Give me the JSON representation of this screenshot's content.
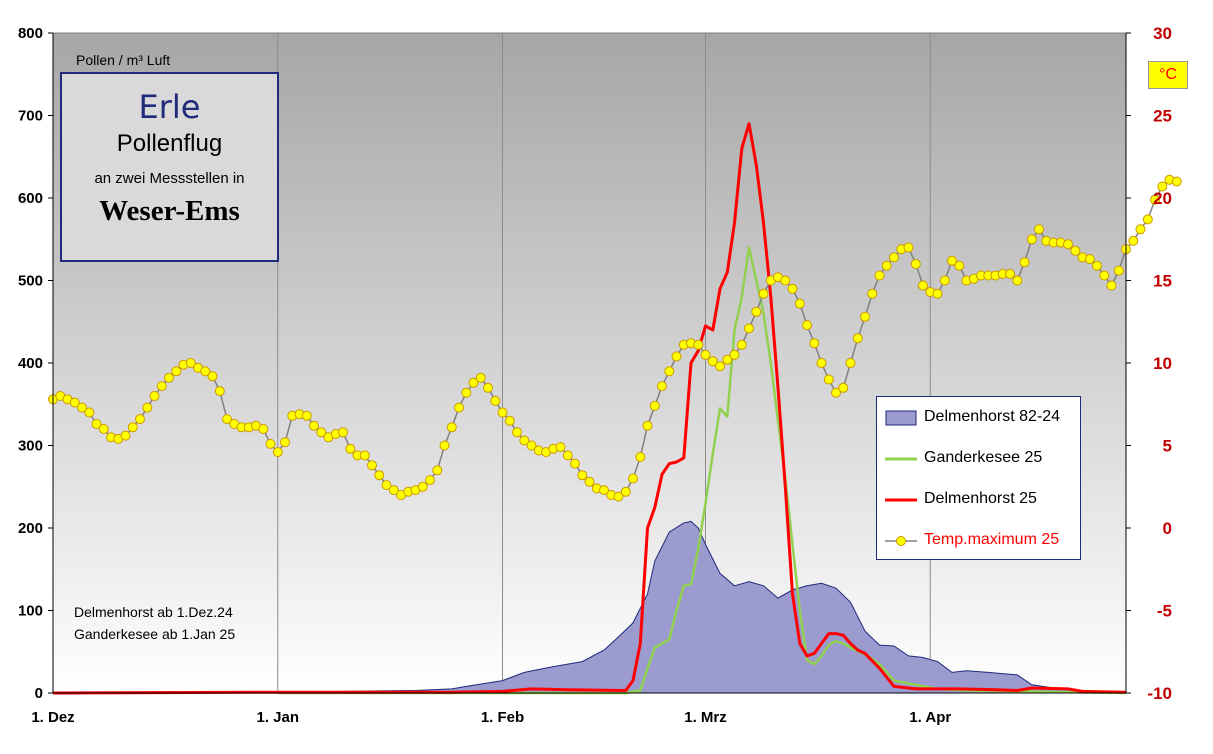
{
  "title_box": {
    "species": "Erle",
    "subtitle": "Pollenflug",
    "detail": "an zwei Messstellen  in",
    "region": "Weser-Ems"
  },
  "unit_label": "Pollen / m³ Luft",
  "celsius_label": "°C",
  "notes": [
    "Delmenhorst ab 1.Dez.24",
    "Ganderkesee ab 1.Jan 25"
  ],
  "chart_data": {
    "type": "line",
    "x_axis": {
      "start": "2024-12-01",
      "end": "2025-04-28",
      "ticks": [
        {
          "label": "1. Dez",
          "date": "2024-12-01"
        },
        {
          "label": "1. Jan",
          "date": "2025-01-01"
        },
        {
          "label": "1. Feb",
          "date": "2025-02-01"
        },
        {
          "label": "1. Mrz",
          "date": "2025-03-01"
        },
        {
          "label": "1. Apr",
          "date": "2025-04-01"
        }
      ]
    },
    "y_left": {
      "range": [
        0,
        800
      ],
      "ticks": [
        0,
        100,
        200,
        300,
        400,
        500,
        600,
        700,
        800
      ]
    },
    "y_right": {
      "range": [
        -10,
        30
      ],
      "ticks": [
        -10,
        -5,
        0,
        5,
        10,
        15,
        20,
        25,
        30
      ]
    },
    "grid": "vertical lines at month starts",
    "legend_position": "right-middle",
    "series": [
      {
        "name": "Delmenhorst 82-24",
        "kind": "area",
        "axis": "left",
        "color": "#9b9bcf",
        "points": [
          [
            "2024-12-01",
            0
          ],
          [
            "2024-12-15",
            0
          ],
          [
            "2025-01-01",
            1
          ],
          [
            "2025-01-10",
            2
          ],
          [
            "2025-01-20",
            3
          ],
          [
            "2025-01-25",
            5
          ],
          [
            "2025-01-27",
            8
          ],
          [
            "2025-02-01",
            15
          ],
          [
            "2025-02-04",
            25
          ],
          [
            "2025-02-08",
            32
          ],
          [
            "2025-02-12",
            38
          ],
          [
            "2025-02-15",
            52
          ],
          [
            "2025-02-17",
            68
          ],
          [
            "2025-02-19",
            85
          ],
          [
            "2025-02-21",
            120
          ],
          [
            "2025-02-22",
            160
          ],
          [
            "2025-02-24",
            195
          ],
          [
            "2025-02-26",
            206
          ],
          [
            "2025-02-27",
            208
          ],
          [
            "2025-02-28",
            200
          ],
          [
            "2025-03-01",
            180
          ],
          [
            "2025-03-03",
            145
          ],
          [
            "2025-03-05",
            130
          ],
          [
            "2025-03-07",
            135
          ],
          [
            "2025-03-09",
            130
          ],
          [
            "2025-03-11",
            115
          ],
          [
            "2025-03-13",
            125
          ],
          [
            "2025-03-15",
            130
          ],
          [
            "2025-03-17",
            133
          ],
          [
            "2025-03-19",
            127
          ],
          [
            "2025-03-21",
            110
          ],
          [
            "2025-03-23",
            75
          ],
          [
            "2025-03-25",
            58
          ],
          [
            "2025-03-27",
            57
          ],
          [
            "2025-03-29",
            45
          ],
          [
            "2025-03-31",
            43
          ],
          [
            "2025-04-02",
            38
          ],
          [
            "2025-04-04",
            25
          ],
          [
            "2025-04-06",
            27
          ],
          [
            "2025-04-09",
            25
          ],
          [
            "2025-04-13",
            22
          ],
          [
            "2025-04-15",
            10
          ],
          [
            "2025-04-18",
            6
          ],
          [
            "2025-04-22",
            2
          ],
          [
            "2025-04-28",
            1
          ]
        ]
      },
      {
        "name": "Ganderkesee 25",
        "kind": "line",
        "axis": "left",
        "color": "#92d050",
        "points": [
          [
            "2025-01-01",
            0
          ],
          [
            "2025-02-10",
            0
          ],
          [
            "2025-02-18",
            0
          ],
          [
            "2025-02-20",
            3
          ],
          [
            "2025-02-21",
            30
          ],
          [
            "2025-02-22",
            55
          ],
          [
            "2025-02-24",
            65
          ],
          [
            "2025-02-25",
            100
          ],
          [
            "2025-02-26",
            130
          ],
          [
            "2025-02-27",
            132
          ],
          [
            "2025-02-28",
            175
          ],
          [
            "2025-03-01",
            230
          ],
          [
            "2025-03-02",
            290
          ],
          [
            "2025-03-03",
            345
          ],
          [
            "2025-03-04",
            335
          ],
          [
            "2025-03-05",
            440
          ],
          [
            "2025-03-06",
            480
          ],
          [
            "2025-03-07",
            540
          ],
          [
            "2025-03-08",
            500
          ],
          [
            "2025-03-09",
            460
          ],
          [
            "2025-03-10",
            400
          ],
          [
            "2025-03-11",
            330
          ],
          [
            "2025-03-12",
            260
          ],
          [
            "2025-03-13",
            180
          ],
          [
            "2025-03-14",
            100
          ],
          [
            "2025-03-15",
            40
          ],
          [
            "2025-03-16",
            35
          ],
          [
            "2025-03-17",
            45
          ],
          [
            "2025-03-18",
            58
          ],
          [
            "2025-03-19",
            63
          ],
          [
            "2025-03-20",
            60
          ],
          [
            "2025-03-21",
            55
          ],
          [
            "2025-03-23",
            47
          ],
          [
            "2025-03-25",
            35
          ],
          [
            "2025-03-27",
            15
          ],
          [
            "2025-03-30",
            10
          ],
          [
            "2025-04-02",
            5
          ],
          [
            "2025-04-06",
            3
          ],
          [
            "2025-04-14",
            2
          ],
          [
            "2025-04-20",
            1
          ],
          [
            "2025-04-28",
            0
          ]
        ]
      },
      {
        "name": "Delmenhorst 25",
        "kind": "line",
        "axis": "left",
        "color": "#ff0000",
        "points": [
          [
            "2024-12-01",
            0
          ],
          [
            "2025-01-01",
            1
          ],
          [
            "2025-01-25",
            1
          ],
          [
            "2025-02-01",
            2
          ],
          [
            "2025-02-05",
            5
          ],
          [
            "2025-02-10",
            4
          ],
          [
            "2025-02-18",
            3
          ],
          [
            "2025-02-19",
            15
          ],
          [
            "2025-02-20",
            60
          ],
          [
            "2025-02-21",
            200
          ],
          [
            "2025-02-22",
            225
          ],
          [
            "2025-02-23",
            265
          ],
          [
            "2025-02-24",
            278
          ],
          [
            "2025-02-25",
            280
          ],
          [
            "2025-02-26",
            285
          ],
          [
            "2025-02-27",
            400
          ],
          [
            "2025-02-28",
            415
          ],
          [
            "2025-03-01",
            445
          ],
          [
            "2025-03-02",
            440
          ],
          [
            "2025-03-03",
            490
          ],
          [
            "2025-03-04",
            510
          ],
          [
            "2025-03-05",
            570
          ],
          [
            "2025-03-06",
            660
          ],
          [
            "2025-03-07",
            690
          ],
          [
            "2025-03-08",
            640
          ],
          [
            "2025-03-09",
            570
          ],
          [
            "2025-03-10",
            480
          ],
          [
            "2025-03-11",
            370
          ],
          [
            "2025-03-12",
            250
          ],
          [
            "2025-03-13",
            120
          ],
          [
            "2025-03-14",
            60
          ],
          [
            "2025-03-15",
            45
          ],
          [
            "2025-03-16",
            48
          ],
          [
            "2025-03-17",
            60
          ],
          [
            "2025-03-18",
            72
          ],
          [
            "2025-03-19",
            72
          ],
          [
            "2025-03-20",
            70
          ],
          [
            "2025-03-21",
            60
          ],
          [
            "2025-03-22",
            52
          ],
          [
            "2025-03-23",
            48
          ],
          [
            "2025-03-25",
            30
          ],
          [
            "2025-03-27",
            8
          ],
          [
            "2025-03-30",
            5
          ],
          [
            "2025-04-05",
            5
          ],
          [
            "2025-04-10",
            4
          ],
          [
            "2025-04-13",
            3
          ],
          [
            "2025-04-15",
            6
          ],
          [
            "2025-04-20",
            5
          ],
          [
            "2025-04-22",
            2
          ],
          [
            "2025-04-28",
            1
          ]
        ]
      },
      {
        "name": "Temp.maximum 25",
        "kind": "line-markers",
        "axis": "right",
        "color": "#808080",
        "marker_fill": "#ffff00",
        "marker_stroke": "#cc9900",
        "start": "2024-12-01",
        "step_days": 1,
        "values": [
          7.8,
          8.0,
          7.8,
          7.6,
          7.3,
          7.0,
          6.3,
          6.0,
          5.5,
          5.4,
          5.6,
          6.1,
          6.6,
          7.3,
          8.0,
          8.6,
          9.1,
          9.5,
          9.9,
          10.0,
          9.7,
          9.5,
          9.2,
          8.3,
          6.6,
          6.3,
          6.1,
          6.1,
          6.2,
          6.0,
          5.1,
          4.6,
          5.2,
          6.8,
          6.9,
          6.8,
          6.2,
          5.8,
          5.5,
          5.7,
          5.8,
          4.8,
          4.4,
          4.4,
          3.8,
          3.2,
          2.6,
          2.3,
          2.0,
          2.2,
          2.3,
          2.5,
          2.9,
          3.5,
          5.0,
          6.1,
          7.3,
          8.2,
          8.8,
          9.1,
          8.5,
          7.7,
          7.0,
          6.5,
          5.8,
          5.3,
          5.0,
          4.7,
          4.6,
          4.8,
          4.9,
          4.4,
          3.9,
          3.2,
          2.8,
          2.4,
          2.3,
          2.0,
          1.9,
          2.2,
          3.0,
          4.3,
          6.2,
          7.4,
          8.6,
          9.5,
          10.4,
          11.1,
          11.2,
          11.1,
          10.5,
          10.1,
          9.8,
          10.2,
          10.5,
          11.1,
          12.1,
          13.1,
          14.2,
          15.0,
          15.2,
          15.0,
          14.5,
          13.6,
          12.3,
          11.2,
          10.0,
          9.0,
          8.2,
          8.5,
          10.0,
          11.5,
          12.8,
          14.2,
          15.3,
          15.9,
          16.4,
          16.9,
          17.0,
          16.0,
          14.7,
          14.3,
          14.2,
          15.0,
          16.2,
          15.9,
          15.0,
          15.1,
          15.3,
          15.3,
          15.3,
          15.4,
          15.4,
          15.0,
          16.1,
          17.5,
          18.1,
          17.4,
          17.3,
          17.3,
          17.2,
          16.8,
          16.4,
          16.3,
          15.9,
          15.3,
          14.7,
          15.6,
          16.9,
          17.4,
          18.1,
          18.7,
          19.9,
          20.7,
          21.1,
          21.0
        ]
      }
    ]
  },
  "legend": {
    "items": [
      {
        "label": "Delmenhorst 82-24",
        "symbol": "area-swatch"
      },
      {
        "label": "Ganderkesee 25",
        "symbol": "green-line"
      },
      {
        "label": "Delmenhorst 25",
        "symbol": "red-line"
      },
      {
        "label": "Temp.maximum 25",
        "symbol": "marker-line"
      }
    ]
  }
}
